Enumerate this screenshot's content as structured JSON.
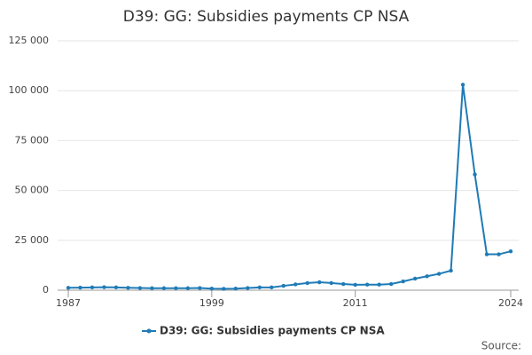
{
  "chart_data": {
    "type": "line",
    "title": "D39: GG: Subsidies payments CP NSA",
    "x": [
      1987,
      1988,
      1989,
      1990,
      1991,
      1992,
      1993,
      1994,
      1995,
      1996,
      1997,
      1998,
      1999,
      2000,
      2001,
      2002,
      2003,
      2004,
      2005,
      2006,
      2007,
      2008,
      2009,
      2010,
      2011,
      2012,
      2013,
      2014,
      2015,
      2016,
      2017,
      2018,
      2019,
      2020,
      2021,
      2022,
      2023,
      2024
    ],
    "series": [
      {
        "name": "D39: GG: Subsidies payments CP NSA",
        "color": "#1f7bb6",
        "values": [
          1200,
          1300,
          1400,
          1500,
          1400,
          1200,
          1100,
          1000,
          1000,
          1000,
          1000,
          1100,
          800,
          700,
          800,
          1100,
          1400,
          1400,
          2200,
          2900,
          3600,
          4000,
          3600,
          3100,
          2700,
          2800,
          2800,
          3100,
          4400,
          5800,
          7000,
          8200,
          9800,
          103000,
          58000,
          18000,
          18000,
          19500
        ]
      }
    ],
    "xlim": [
      1987,
      2024
    ],
    "xticks": [
      1987,
      1999,
      2011,
      2024
    ],
    "ylim": [
      0,
      125000
    ],
    "yticks": [
      0,
      {
        "value": 25000,
        "label": "25 000"
      },
      {
        "value": 50000,
        "label": "50 000"
      },
      {
        "value": 75000,
        "label": "75 000"
      },
      {
        "value": 100000,
        "label": "100 000"
      },
      {
        "value": 125000,
        "label": "125 000"
      }
    ],
    "grid": true,
    "legend": "bottom",
    "source_label": "Source:"
  }
}
